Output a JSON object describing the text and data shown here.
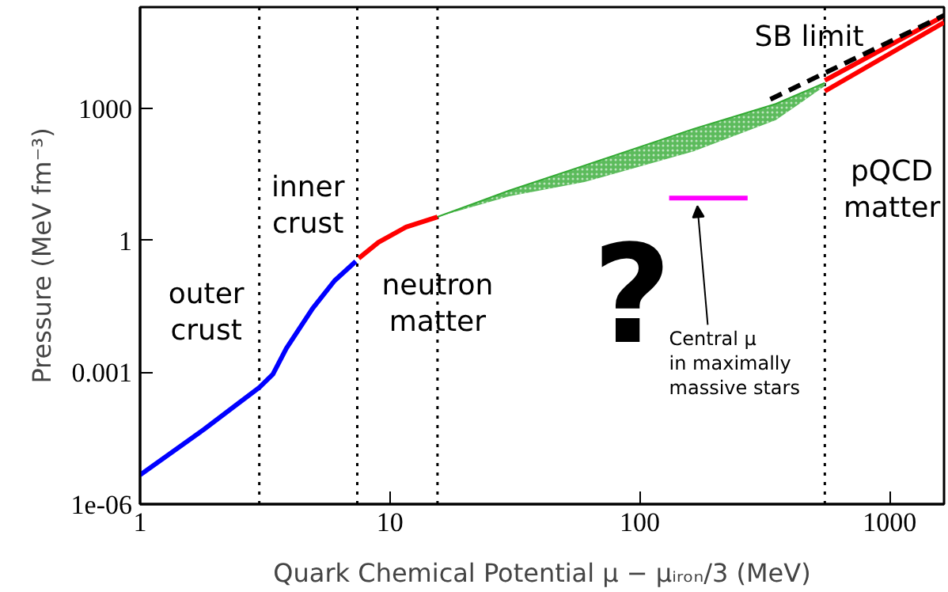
{
  "chart_data": {
    "type": "line",
    "xlabel": "Quark Chemical Potential μ − μᵢᵣₒₙ/3 (MeV)",
    "ylabel": "Pressure (MeV fm⁻³)",
    "log": "xy",
    "xlim": [
      1,
      1650
    ],
    "ylim": [
      1e-06,
      200000
    ],
    "xticks": [
      1,
      10,
      100,
      1000
    ],
    "yticks": [
      {
        "value": 1e-06,
        "label": "1e-06"
      },
      0.001,
      1,
      1000
    ],
    "grid": false,
    "series": [
      {
        "color": "#0000ff",
        "x": [
          1,
          1.8,
          3.0,
          3.4,
          3.85,
          4.9,
          6,
          7.3
        ],
        "values": [
          4.6e-06,
          5e-05,
          0.00045,
          0.0009,
          0.0035,
          0.028,
          0.12,
          0.33
        ]
      },
      {
        "color": "#ff0000",
        "x": [
          7.5,
          9,
          11.6,
          15.5
        ],
        "values": [
          0.39,
          0.9,
          2,
          3.4
        ]
      },
      {
        "color": "#33aa33",
        "x": [
          15.5,
          30,
          60,
          164,
          350,
          550
        ],
        "values": [
          3.4,
          13.5,
          50,
          340,
          1260,
          3800
        ],
        "lower": [
          3.4,
          10,
          21,
          105,
          540,
          3200
        ],
        "upper": [
          3.4,
          13.5,
          50,
          340,
          1260,
          3800
        ]
      },
      {
        "color": "#ff0000",
        "x": [
          550,
          1650
        ],
        "values": [
          4300,
          126000
        ]
      },
      {
        "color": "#ff0000",
        "x": [
          550,
          1650
        ],
        "values": [
          2450,
          90000
        ]
      },
      {
        "name": "SB limit",
        "color": "#000000",
        "line_style": "dashed",
        "x": [
          333,
          1650
        ],
        "values": [
          1600,
          130000
        ]
      },
      {
        "color": "#ff00ff",
        "x": [
          131,
          270
        ],
        "values": [
          9.1,
          9.1
        ]
      }
    ],
    "ref_lines": [
      {
        "axis": "x",
        "value": 3.0,
        "color": "#000000",
        "line_style": "dotted"
      },
      {
        "axis": "x",
        "value": 7.4,
        "color": "#000000",
        "line_style": "dotted"
      },
      {
        "axis": "x",
        "value": 15.5,
        "color": "#000000",
        "line_style": "dotted"
      },
      {
        "axis": "x",
        "value": 550,
        "color": "#000000",
        "line_style": "dotted"
      }
    ],
    "annotations": [
      "outer\ncrust",
      "inner\ncrust",
      "neutron\nmatter",
      "pQCD\nmatter",
      "?",
      "Central μ\nin maximally\nmassive stars"
    ]
  }
}
